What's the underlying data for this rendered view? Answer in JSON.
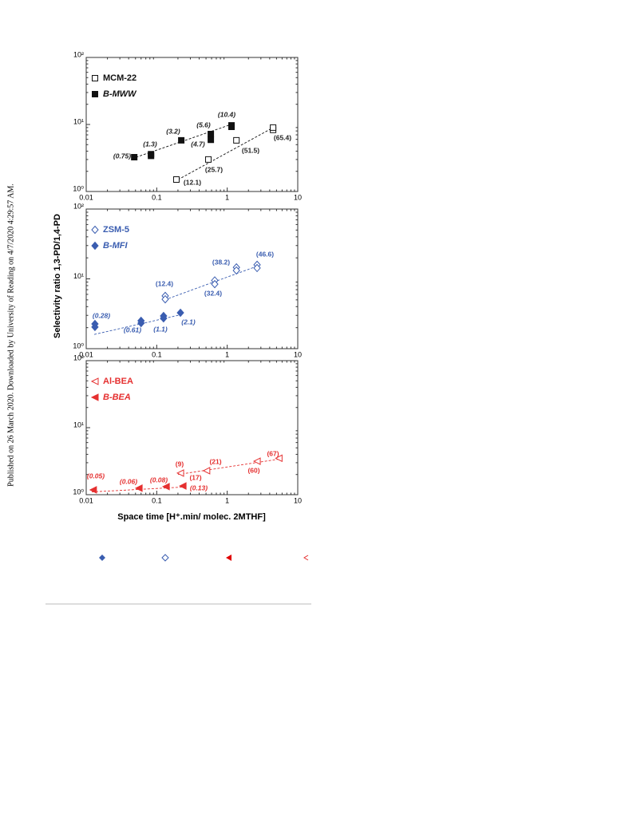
{
  "sidebar": "Published on 26 March 2020. Downloaded by University of Reading on 4/7/2020 4:29:57 AM.",
  "figure": {
    "ylabel": "Selectivity ratio 1,3-PD/1,4-PD",
    "xlabel": "Space time [H⁺.min/ molec. 2MTHF]"
  },
  "chart_data": [
    {
      "type": "scatter",
      "xlog": true,
      "ylog": true,
      "xlim": [
        0.01,
        10
      ],
      "ylim": [
        1,
        100
      ],
      "xticks": [
        0.01,
        0.1,
        1,
        10
      ],
      "yticks": [
        {
          "value": 1,
          "label": "10⁰"
        },
        {
          "value": 10,
          "label": "10¹"
        },
        {
          "value": 100,
          "label": "10²"
        }
      ],
      "series": [
        {
          "name": "MCM-22",
          "color": "#111111",
          "marker": "square",
          "filled": false,
          "x": [
            0.19,
            0.54,
            1.35,
            4.47,
            4.47
          ],
          "values": [
            1.51,
            3.0,
            5.8,
            8.3,
            9.0
          ],
          "trend": {
            "x": [
              0.2,
              4.5
            ],
            "values": [
              1.5,
              9.0
            ]
          },
          "annotations": [
            "(12.1)",
            "(25.7)",
            "(51.5)",
            "(65.4)"
          ]
        },
        {
          "name": "B-MWW",
          "color": "#111111",
          "marker": "square",
          "filled": true,
          "x": [
            0.048,
            0.083,
            0.083,
            0.223,
            0.585,
            0.585,
            1.15,
            1.15
          ],
          "values": [
            3.25,
            3.4,
            3.6,
            5.8,
            7.2,
            5.9,
            9.7,
            9.2
          ],
          "trend": {
            "x": [
              0.045,
              1.2
            ],
            "values": [
              3.1,
              10.2
            ]
          },
          "annotations": [
            "(0.75)",
            "(1.3)",
            "(3.2)",
            "(5.6)",
            "(4.7)",
            "(10.4)"
          ]
        }
      ]
    },
    {
      "type": "scatter",
      "xlog": true,
      "ylog": true,
      "xlim": [
        0.01,
        10
      ],
      "ylim": [
        1,
        100
      ],
      "xticks": [
        0.01,
        0.1,
        1,
        10
      ],
      "yticks": [
        {
          "value": 1,
          "label": "10⁰"
        },
        {
          "value": 10,
          "label": "10¹"
        },
        {
          "value": 100,
          "label": "10²"
        }
      ],
      "series": [
        {
          "name": "ZSM-5",
          "color": "#3a5db0",
          "marker": "diamond",
          "filled": false,
          "x": [
            0.132,
            0.132,
            0.665,
            0.665,
            1.35,
            1.35,
            2.65,
            2.65
          ],
          "values": [
            5.7,
            5.1,
            9.5,
            8.4,
            14.6,
            13.2,
            15.9,
            14.3
          ],
          "trend": {
            "x": [
              0.13,
              2.8
            ],
            "values": [
              5.0,
              15.5
            ]
          },
          "annotations": [
            "(12.4)",
            "(32.4)",
            "(38.2)",
            "(46.6)"
          ]
        },
        {
          "name": "B-MFI",
          "color": "#3a5db0",
          "marker": "diamond",
          "filled": true,
          "x": [
            0.0133,
            0.0133,
            0.06,
            0.06,
            0.125,
            0.125,
            0.217
          ],
          "values": [
            2.26,
            2.04,
            2.51,
            2.32,
            2.94,
            2.72,
            3.27
          ],
          "trend": {
            "x": [
              0.013,
              0.23
            ],
            "values": [
              1.6,
              3.1
            ]
          },
          "annotations": [
            "(0.28)",
            "(0.61)",
            "(1.1)",
            "(2.1)"
          ]
        }
      ]
    },
    {
      "type": "scatter",
      "xlog": true,
      "ylog": true,
      "xlim": [
        0.01,
        10
      ],
      "ylim": [
        1,
        100
      ],
      "xticks": [
        0.01,
        0.1,
        1,
        10
      ],
      "yticks": [
        {
          "value": 1,
          "label": "10⁰"
        },
        {
          "value": 10,
          "label": "10¹"
        },
        {
          "value": 100,
          "label": "10²"
        }
      ],
      "series": [
        {
          "name": "Al-BEA",
          "color": "#e53030",
          "marker": "triangle",
          "filled": false,
          "x": [
            0.217,
            0.51,
            2.65,
            5.4
          ],
          "values": [
            2.1,
            2.28,
            3.16,
            3.5
          ],
          "trend": {
            "x": [
              0.2,
              5.5
            ],
            "values": [
              2.0,
              3.4
            ]
          },
          "annotations": [
            "(9)",
            "(17)",
            "(21)",
            "(60)",
            "(67)"
          ]
        },
        {
          "name": "B-BEA",
          "color": "#e53030",
          "marker": "triangle",
          "filled": true,
          "x": [
            0.0126,
            0.056,
            0.136,
            0.235
          ],
          "values": [
            1.18,
            1.25,
            1.32,
            1.35
          ],
          "trend": {
            "x": [
              0.012,
              0.24
            ],
            "values": [
              1.1,
              1.3
            ]
          },
          "annotations": [
            "(0.05)",
            "(0.06)",
            "(0.08)",
            "(0.13)"
          ]
        }
      ]
    }
  ]
}
